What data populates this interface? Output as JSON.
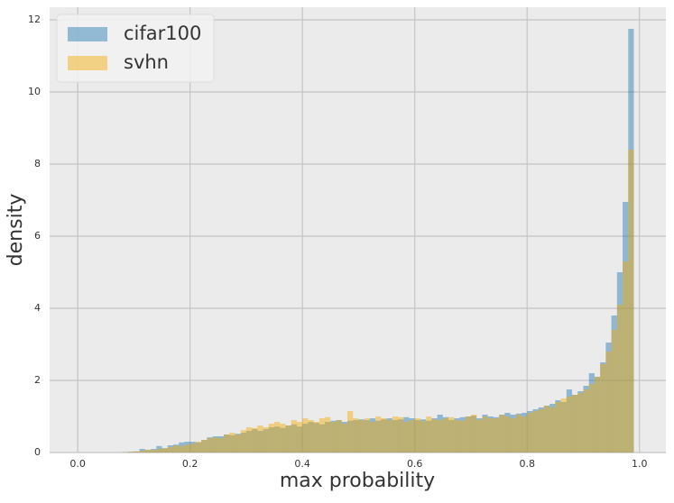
{
  "chart_data": {
    "type": "histogram",
    "x_label": "max probability",
    "y_label": "density",
    "bins": [
      0.07,
      0.08,
      0.09,
      0.1,
      0.11,
      0.12,
      0.13,
      0.14,
      0.15,
      0.16,
      0.17,
      0.18,
      0.19,
      0.2,
      0.21,
      0.22,
      0.23,
      0.24,
      0.25,
      0.26,
      0.27,
      0.28,
      0.29,
      0.3,
      0.31,
      0.32,
      0.33,
      0.34,
      0.35,
      0.36,
      0.37,
      0.38,
      0.39,
      0.4,
      0.41,
      0.42,
      0.43,
      0.44,
      0.45,
      0.46,
      0.47,
      0.48,
      0.49,
      0.5,
      0.51,
      0.52,
      0.53,
      0.54,
      0.55,
      0.56,
      0.57,
      0.58,
      0.59,
      0.6,
      0.61,
      0.62,
      0.63,
      0.64,
      0.65,
      0.66,
      0.67,
      0.68,
      0.69,
      0.7,
      0.71,
      0.72,
      0.73,
      0.74,
      0.75,
      0.76,
      0.77,
      0.78,
      0.79,
      0.8,
      0.81,
      0.82,
      0.83,
      0.84,
      0.85,
      0.86,
      0.87,
      0.88,
      0.89,
      0.9,
      0.91,
      0.92,
      0.93,
      0.94,
      0.95,
      0.96,
      0.97,
      0.98,
      0.99
    ],
    "series": [
      {
        "name": "cifar100",
        "color": "#1f77b4",
        "values": [
          0,
          0.01,
          0.02,
          0.03,
          0.1,
          0.07,
          0.1,
          0.18,
          0.12,
          0.2,
          0.22,
          0.28,
          0.3,
          0.3,
          0.28,
          0.35,
          0.42,
          0.45,
          0.45,
          0.5,
          0.48,
          0.52,
          0.55,
          0.6,
          0.65,
          0.6,
          0.65,
          0.7,
          0.72,
          0.68,
          0.75,
          0.78,
          0.72,
          0.8,
          0.85,
          0.82,
          0.78,
          0.85,
          0.88,
          0.9,
          0.85,
          0.88,
          0.9,
          0.92,
          0.9,
          0.95,
          0.88,
          0.92,
          0.95,
          0.9,
          0.92,
          0.98,
          0.95,
          0.9,
          0.92,
          0.88,
          0.95,
          1.05,
          0.98,
          0.9,
          0.95,
          0.98,
          1.0,
          1.02,
          0.95,
          1.05,
          1.0,
          0.98,
          1.05,
          1.1,
          1.05,
          1.08,
          1.1,
          1.15,
          1.2,
          1.25,
          1.3,
          1.35,
          1.45,
          1.4,
          1.75,
          1.6,
          1.7,
          1.85,
          2.2,
          2.1,
          2.5,
          3.05,
          3.8,
          5.0,
          6.95,
          11.75
        ]
      },
      {
        "name": "svhn",
        "color": "#f5a800",
        "values": [
          0,
          0.01,
          0.02,
          0.03,
          0.05,
          0.08,
          0.07,
          0.1,
          0.12,
          0.15,
          0.2,
          0.18,
          0.22,
          0.25,
          0.3,
          0.35,
          0.4,
          0.42,
          0.4,
          0.5,
          0.55,
          0.5,
          0.62,
          0.7,
          0.68,
          0.75,
          0.7,
          0.8,
          0.85,
          0.8,
          0.75,
          0.9,
          0.85,
          0.95,
          0.9,
          0.85,
          0.95,
          0.98,
          0.85,
          0.9,
          0.8,
          1.15,
          0.95,
          0.9,
          0.95,
          0.85,
          1.0,
          0.95,
          0.9,
          1.0,
          0.98,
          0.85,
          0.9,
          0.95,
          0.88,
          1.0,
          0.92,
          0.9,
          0.95,
          0.98,
          0.9,
          0.88,
          1.0,
          1.05,
          0.9,
          1.0,
          0.95,
          0.95,
          1.05,
          1.0,
          0.95,
          1.05,
          1.0,
          1.1,
          1.15,
          1.2,
          1.3,
          1.25,
          1.4,
          1.5,
          1.55,
          1.6,
          1.65,
          1.75,
          1.9,
          2.1,
          2.45,
          2.8,
          3.4,
          4.1,
          5.3,
          8.4
        ]
      }
    ],
    "xlim": [
      -0.05,
      1.047
    ],
    "ylim": [
      0,
      12.35
    ],
    "xticks": [
      {
        "value": 0,
        "label": "0.0"
      },
      {
        "value": 0.2,
        "label": "0.2"
      },
      {
        "value": 0.4,
        "label": "0.4"
      },
      {
        "value": 0.6,
        "label": "0.6"
      },
      {
        "value": 0.8,
        "label": "0.8"
      },
      {
        "value": 1,
        "label": "1.0"
      }
    ],
    "yticks": [
      0,
      2,
      4,
      6,
      8,
      10,
      12
    ],
    "grid": true,
    "legend": "upper-left"
  }
}
